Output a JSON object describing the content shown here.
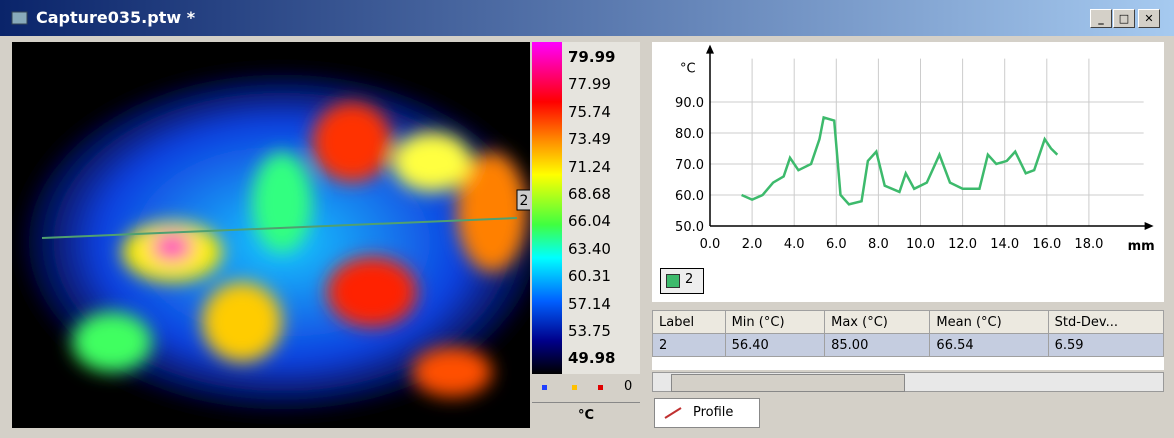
{
  "window": {
    "title": "Capture035.ptw *"
  },
  "image": {
    "marker": "2"
  },
  "colorbar": {
    "labels": [
      "79.99",
      "77.99",
      "75.74",
      "73.49",
      "71.24",
      "68.68",
      "66.04",
      "63.40",
      "60.31",
      "57.14",
      "53.75",
      "49.98"
    ],
    "count": "0",
    "unit": "°C"
  },
  "chart_data": {
    "type": "line",
    "x_label": "mm",
    "y_label": "°C",
    "x": [
      1.5,
      2.0,
      2.5,
      3.0,
      3.5,
      3.8,
      4.2,
      4.8,
      5.2,
      5.4,
      5.9,
      6.2,
      6.6,
      7.2,
      7.5,
      7.9,
      8.3,
      9.0,
      9.3,
      9.7,
      10.3,
      10.9,
      11.4,
      12.0,
      12.8,
      13.2,
      13.6,
      14.1,
      14.5,
      15.0,
      15.4,
      15.9,
      16.2,
      16.5
    ],
    "series": [
      {
        "name": "2",
        "color": "#3dba6c",
        "values": [
          60,
          58.5,
          60,
          64,
          66,
          72,
          68,
          70,
          78,
          85,
          84,
          60,
          57,
          58,
          71,
          74,
          63,
          61,
          67,
          62,
          64,
          73,
          64,
          62,
          62,
          73,
          70,
          71,
          74,
          67,
          68,
          78,
          75,
          73
        ]
      }
    ],
    "xlim": [
      0,
      20.6
    ],
    "ylim": [
      50,
      104
    ],
    "xticks": [
      {
        "value": 0,
        "label": "0.0"
      },
      {
        "value": 2,
        "label": "2.0"
      },
      {
        "value": 4,
        "label": "4.0"
      },
      {
        "value": 6,
        "label": "6.0"
      },
      {
        "value": 8,
        "label": "8.0"
      },
      {
        "value": 10,
        "label": "10.0"
      },
      {
        "value": 12,
        "label": "12.0"
      },
      {
        "value": 14,
        "label": "14.0"
      },
      {
        "value": 16,
        "label": "16.0"
      },
      {
        "value": 18,
        "label": "18.0"
      }
    ],
    "yticks": [
      {
        "value": 50,
        "label": "50.0"
      },
      {
        "value": 60,
        "label": "60.0"
      },
      {
        "value": 70,
        "label": "70.0"
      },
      {
        "value": 80,
        "label": "80.0"
      },
      {
        "value": 90,
        "label": "90.0"
      }
    ],
    "grid": true
  },
  "table": {
    "headers": [
      "Label",
      "Min (°C)",
      "Max (°C)",
      "Mean (°C)",
      "Std-Dev..."
    ],
    "rows": [
      [
        "2",
        "56.40",
        "85.00",
        "66.54",
        "6.59"
      ]
    ]
  },
  "tab": "Profile"
}
